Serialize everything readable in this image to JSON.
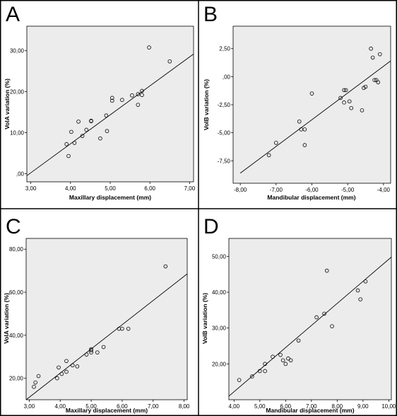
{
  "chart_data": [
    {
      "type": "scatter",
      "panel_label": "A",
      "xlabel": "Maxillary displacement (mm)",
      "ylabel": "VolA variation (%)",
      "xlim": [
        2.9,
        7.1
      ],
      "ylim": [
        -2,
        36
      ],
      "xticks": [
        3,
        4,
        5,
        6,
        7
      ],
      "xtick_labels": [
        "3,00",
        "4,00",
        "5,00",
        "6,00",
        "7,00"
      ],
      "yticks": [
        0,
        10,
        20,
        30
      ],
      "ytick_labels": [
        ",00",
        "10,00",
        "20,00",
        "30,00"
      ],
      "fit_line": {
        "x": [
          2.9,
          7.1
        ],
        "y": [
          -0.5,
          29.2
        ]
      },
      "points": {
        "x": [
          3.9,
          3.95,
          4.02,
          4.1,
          4.2,
          4.3,
          4.4,
          4.52,
          4.52,
          4.75,
          4.9,
          4.92,
          5.05,
          5.05,
          5.3,
          5.55,
          5.7,
          5.7,
          5.8,
          5.8,
          5.98,
          6.5
        ],
        "y": [
          7.2,
          4.3,
          10.2,
          7.5,
          12.7,
          9.2,
          10.7,
          12.8,
          12.9,
          8.6,
          14.2,
          10.4,
          17.8,
          18.5,
          18.0,
          19.1,
          16.8,
          19.4,
          19.2,
          20.2,
          30.8,
          27.4
        ]
      }
    },
    {
      "type": "scatter",
      "panel_label": "B",
      "xlabel": "Mandibular displacement (mm)",
      "ylabel": "VolB variation (%)",
      "xlim": [
        -8.2,
        -3.8
      ],
      "ylim": [
        -9.5,
        4.5
      ],
      "xticks": [
        -8,
        -7,
        -6,
        -5,
        -4
      ],
      "xtick_labels": [
        "-8,00",
        "-7,00",
        "-6,00",
        "-5,00",
        "-4,00"
      ],
      "yticks": [
        -7.5,
        -5,
        -2.5,
        0,
        2.5
      ],
      "ytick_labels": [
        "-7,50",
        "-5,00",
        "-2,50",
        ",00",
        "2,50"
      ],
      "fit_line": {
        "x": [
          -8.0,
          -3.8
        ],
        "y": [
          -8.6,
          1.4
        ]
      },
      "points": {
        "x": [
          -7.2,
          -7.0,
          -6.35,
          -6.3,
          -6.2,
          -6.2,
          -6.0,
          -5.2,
          -5.1,
          -5.1,
          -5.05,
          -4.95,
          -4.9,
          -4.6,
          -4.55,
          -4.5,
          -4.35,
          -4.3,
          -4.25,
          -4.2,
          -4.15,
          -4.1
        ],
        "y": [
          -7.0,
          -5.9,
          -4.0,
          -4.7,
          -4.7,
          -6.1,
          -1.5,
          -1.9,
          -2.3,
          -1.2,
          -1.2,
          -2.2,
          -2.8,
          -3.0,
          -1.0,
          -0.9,
          2.5,
          1.7,
          -0.3,
          -0.3,
          -0.5,
          2.0
        ]
      }
    },
    {
      "type": "scatter",
      "panel_label": "C",
      "xlabel": "Maxillary displacement (mm)",
      "ylabel": "VolA variation (%)",
      "xlim": [
        2.9,
        8.1
      ],
      "ylim": [
        10,
        85
      ],
      "xticks": [
        3,
        4,
        5,
        6,
        7,
        8
      ],
      "xtick_labels": [
        "3,00",
        "4,00",
        "5,00",
        "6,00",
        "7,00",
        "8,00"
      ],
      "yticks": [
        20,
        40,
        60,
        80
      ],
      "ytick_labels": [
        "20,00",
        "40,00",
        "60,00",
        "80,00"
      ],
      "fit_line": {
        "x": [
          2.9,
          8.1
        ],
        "y": [
          10.0,
          68.5
        ]
      },
      "points": {
        "x": [
          3.15,
          3.2,
          3.3,
          3.9,
          3.95,
          4.05,
          4.2,
          4.2,
          4.4,
          4.55,
          4.85,
          5.0,
          5.0,
          5.0,
          5.2,
          5.4,
          5.9,
          6.0,
          6.2,
          7.4
        ],
        "y": [
          16.0,
          18.0,
          21.0,
          20.0,
          25.0,
          22.0,
          23.0,
          28.0,
          26.0,
          25.5,
          31.0,
          32.0,
          33.0,
          33.5,
          32.0,
          34.5,
          43.0,
          43.0,
          43.0,
          72.0
        ]
      }
    },
    {
      "type": "scatter",
      "panel_label": "D",
      "xlabel": "Mandibular displacement (mm)",
      "ylabel": "VolB variation (%)",
      "xlim": [
        3.8,
        10.1
      ],
      "ylim": [
        10,
        55
      ],
      "xticks": [
        4,
        5,
        6,
        7,
        8,
        9,
        10
      ],
      "xtick_labels": [
        "4,00",
        "5,00",
        "6,00",
        "7,00",
        "8,00",
        "9,00",
        "10,00"
      ],
      "yticks": [
        20,
        30,
        40,
        50
      ],
      "ytick_labels": [
        "20,00",
        "30,00",
        "40,00",
        "50,00"
      ],
      "fit_line": {
        "x": [
          3.8,
          10.1
        ],
        "y": [
          11.0,
          49.8
        ]
      },
      "points": {
        "x": [
          4.2,
          4.7,
          5.0,
          5.2,
          5.2,
          5.5,
          5.8,
          5.9,
          6.0,
          6.1,
          6.2,
          6.5,
          7.2,
          7.5,
          7.6,
          7.8,
          8.8,
          8.9,
          9.1
        ],
        "y": [
          15.5,
          16.5,
          18.0,
          18.0,
          20.0,
          22.0,
          22.5,
          21.0,
          20.0,
          21.5,
          21.0,
          26.5,
          33.0,
          34.0,
          46.0,
          30.5,
          40.5,
          38.0,
          43.0
        ]
      }
    }
  ]
}
